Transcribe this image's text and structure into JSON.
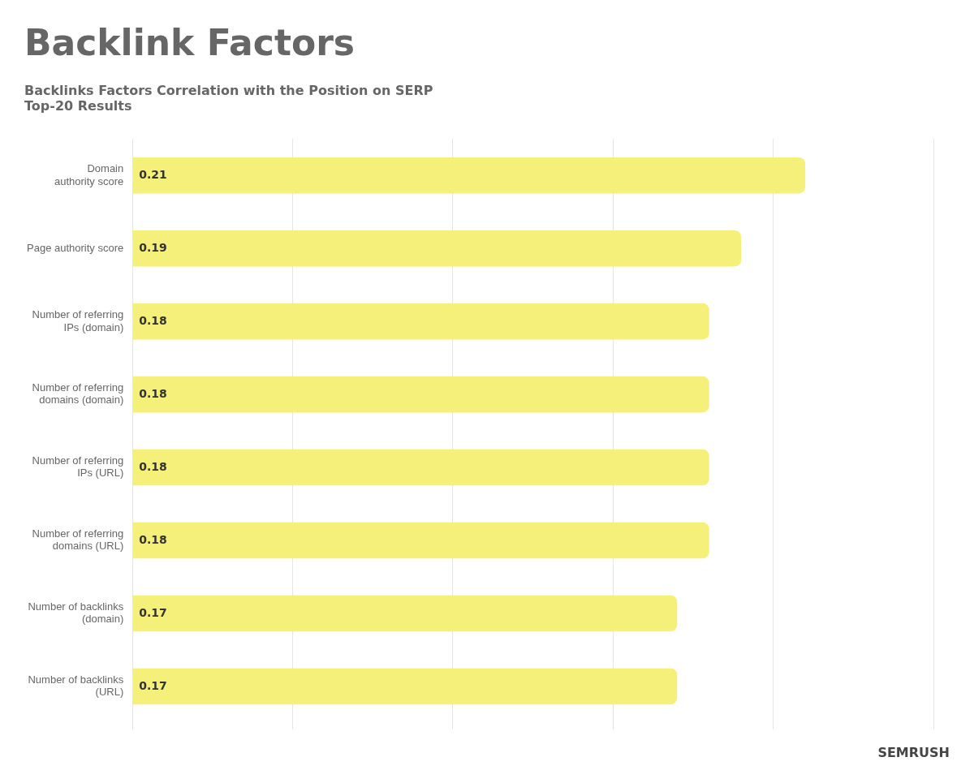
{
  "chart_data": {
    "type": "bar",
    "orientation": "horizontal",
    "title": "Backlink Factors",
    "subtitle": [
      "Backlinks Factors Correlation with the Position on SERP",
      "Top-20 Results"
    ],
    "annotations": [
      "SEMRUSH"
    ],
    "categories": [
      "Domain\nauthority score",
      "Page authority score",
      "Number of referring\nIPs (domain)",
      "Number of referring\ndomains (domain)",
      "Number of referring\nIPs (URL)",
      "Number of referring\ndomains (URL)",
      "Number of backlinks\n(domain)",
      "Number of backlinks\n(URL)"
    ],
    "values": [
      0.21,
      0.19,
      0.18,
      0.18,
      0.18,
      0.18,
      0.17,
      0.17
    ],
    "color": "#f5f07a",
    "xlim": [
      0,
      0.25
    ],
    "xticks": [
      0.0,
      0.05,
      0.1,
      0.15,
      0.2,
      0.25
    ],
    "grid": true,
    "data_labels": true,
    "tick_labels": "y"
  }
}
